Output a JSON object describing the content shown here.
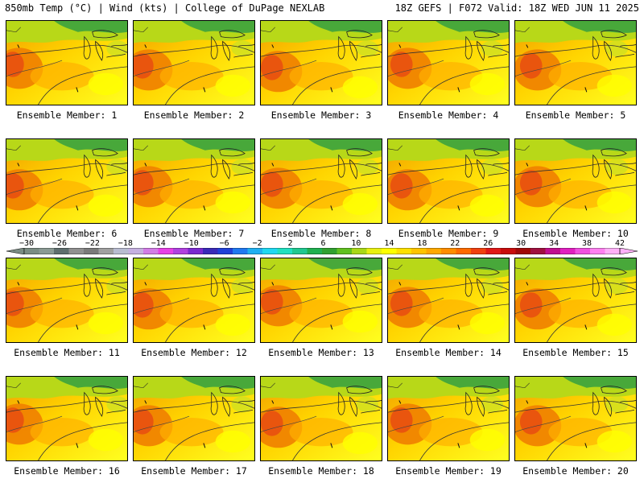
{
  "header": {
    "left_text": "850mb Temp (°C) | Wind (kts) | College of DuPage NEXLAB",
    "right_text": "18Z GEFS | F072 Valid: 18Z WED JUN 11 2025"
  },
  "panels": [
    {
      "label": "Ensemble Member: 1"
    },
    {
      "label": "Ensemble Member: 2"
    },
    {
      "label": "Ensemble Member: 3"
    },
    {
      "label": "Ensemble Member: 4"
    },
    {
      "label": "Ensemble Member: 5"
    },
    {
      "label": "Ensemble Member: 6"
    },
    {
      "label": "Ensemble Member: 7"
    },
    {
      "label": "Ensemble Member: 8"
    },
    {
      "label": "Ensemble Member: 9"
    },
    {
      "label": "Ensemble Member: 10"
    },
    {
      "label": "Ensemble Member: 11"
    },
    {
      "label": "Ensemble Member: 12"
    },
    {
      "label": "Ensemble Member: 13"
    },
    {
      "label": "Ensemble Member: 14"
    },
    {
      "label": "Ensemble Member: 15"
    },
    {
      "label": "Ensemble Member: 16"
    },
    {
      "label": "Ensemble Member: 17"
    },
    {
      "label": "Ensemble Member: 18"
    },
    {
      "label": "Ensemble Member: 19"
    },
    {
      "label": "Ensemble Member: 20"
    }
  ],
  "colorbar": {
    "labels": [
      "−30",
      "−26",
      "−22",
      "−18",
      "−14",
      "−10",
      "−6",
      "−2",
      "2",
      "6",
      "10",
      "14",
      "18",
      "22",
      "26",
      "30",
      "34",
      "38",
      "42"
    ],
    "colors": [
      "#7a8c84",
      "#8a9a94",
      "#5e6e6e",
      "#909090",
      "#7a7a7a",
      "#a0a0a0",
      "#b8bcd0",
      "#c5b0e0",
      "#d27ce6",
      "#e640e6",
      "#b040e0",
      "#7a2ad0",
      "#3a2ab8",
      "#2040d8",
      "#2078f0",
      "#20b0f0",
      "#20d8f0",
      "#20e0c0",
      "#20c890",
      "#20b050",
      "#30a030",
      "#60c020",
      "#a8d818",
      "#e8f010",
      "#ffff00",
      "#ffe000",
      "#ffc400",
      "#ffa800",
      "#ff8c00",
      "#ff6a00",
      "#f04010",
      "#e01818",
      "#c80c0c",
      "#a00808",
      "#a01040",
      "#c01090",
      "#e020c0",
      "#f050e0",
      "#ff80f0",
      "#ffb0f8"
    ]
  }
}
